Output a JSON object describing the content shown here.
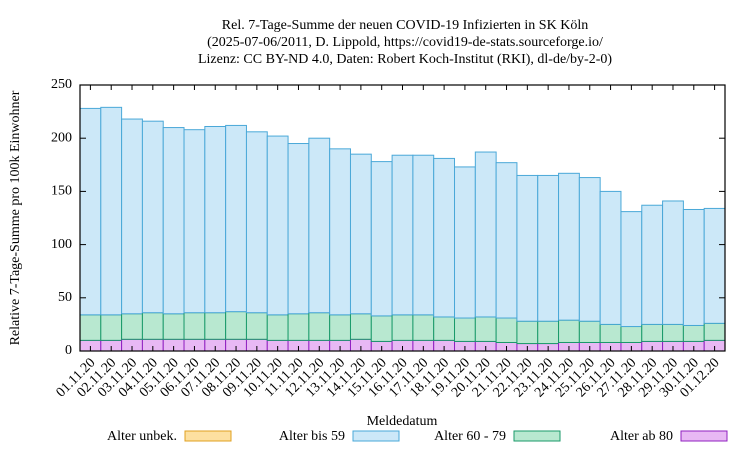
{
  "chart_data": {
    "type": "stacked_bar",
    "title": "Rel. 7-Tage-Summe der neuen COVID-19 Infizierten in SK Köln",
    "subtitle": [
      "(2025-07-06/2011, D. Lippold, https://covid19-de-stats.sourceforge.io/",
      "Lizenz: CC BY-ND 4.0, Daten: Robert Koch-Institut (RKI), dl-de/by-2-0)"
    ],
    "xlabel": "Meldedatum",
    "ylabel": "Relative 7-Tage-Summe pro 100k Einwohner",
    "categories": [
      "01.11.20",
      "02.11.20",
      "03.11.20",
      "04.11.20",
      "05.11.20",
      "06.11.20",
      "07.11.20",
      "08.11.20",
      "09.11.20",
      "10.11.20",
      "11.11.20",
      "12.11.20",
      "13.11.20",
      "14.11.20",
      "15.11.20",
      "16.11.20",
      "17.11.20",
      "18.11.20",
      "19.11.20",
      "20.11.20",
      "21.11.20",
      "22.11.20",
      "23.11.20",
      "24.11.20",
      "25.11.20",
      "26.11.20",
      "27.11.20",
      "28.11.20",
      "29.11.20",
      "30.11.20",
      "01.12.20"
    ],
    "series": [
      {
        "name": "Alter ab 80",
        "color": "#e8b8f4",
        "stroke": "#9020c0",
        "values": [
          10,
          10,
          11,
          11,
          11,
          11,
          11,
          11,
          11,
          10,
          10,
          10,
          10,
          11,
          9,
          10,
          10,
          10,
          9,
          9,
          8,
          7,
          7,
          8,
          8,
          8,
          8,
          9,
          9,
          9,
          10
        ]
      },
      {
        "name": "Alter 60 - 79",
        "color": "#b8e8d0",
        "stroke": "#1a9a6a",
        "values": [
          24,
          24,
          24,
          25,
          24,
          25,
          25,
          26,
          25,
          24,
          25,
          26,
          24,
          24,
          24,
          24,
          24,
          22,
          22,
          23,
          23,
          21,
          21,
          21,
          20,
          17,
          15,
          16,
          16,
          15,
          16
        ]
      },
      {
        "name": "Alter bis 59",
        "color": "#cce8f8",
        "stroke": "#4aa8d8",
        "values": [
          194,
          195,
          183,
          180,
          175,
          172,
          175,
          175,
          170,
          168,
          160,
          164,
          156,
          150,
          145,
          150,
          150,
          149,
          142,
          155,
          146,
          137,
          137,
          138,
          135,
          125,
          108,
          112,
          116,
          109,
          108
        ]
      },
      {
        "name": "Alter unbek.",
        "color": "#fde0a0",
        "stroke": "#e0a020",
        "values": [
          0,
          0,
          0,
          0,
          0,
          0,
          0,
          0,
          0,
          0,
          0,
          0,
          0,
          0,
          0,
          0,
          0,
          0,
          0,
          0,
          0,
          0,
          0,
          0,
          0,
          0,
          0,
          0,
          0,
          0,
          0
        ]
      }
    ],
    "legend_order": [
      3,
      2,
      1,
      0
    ],
    "ylim": [
      0,
      250
    ],
    "yticks": [
      0,
      50,
      100,
      150,
      200,
      250
    ]
  }
}
